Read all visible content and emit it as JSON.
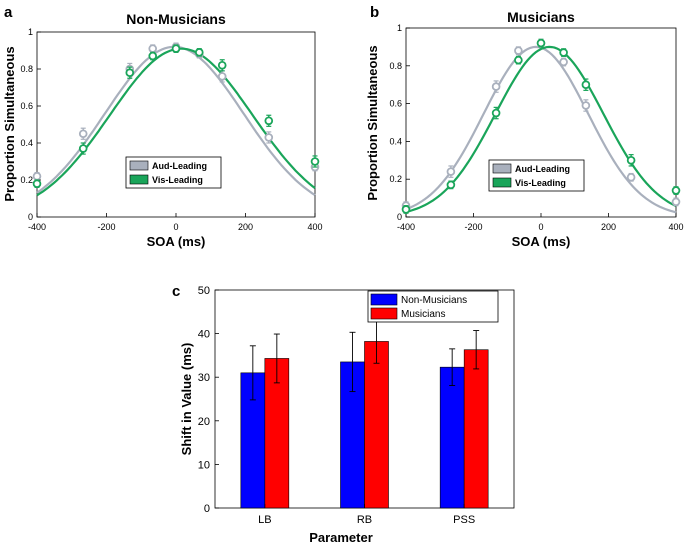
{
  "colors": {
    "aud": "#a9b0bd",
    "vis": "#1aa55a",
    "non_musicians_bar": "#0000ff",
    "musicians_bar": "#ff0000"
  },
  "chart_data": [
    {
      "panel": "a",
      "type": "line",
      "title": "Non-Musicians",
      "xlabel": "SOA (ms)",
      "ylabel": "Proportion Simultaneous",
      "xlim": [
        -400,
        400
      ],
      "ylim": [
        0,
        1
      ],
      "xticks": [
        "-400",
        "-200",
        "0",
        "200",
        "400"
      ],
      "yticks": [
        "0",
        "0.2",
        "0.4",
        "0.6",
        "0.8",
        "1"
      ],
      "legend_position": "lower-center",
      "series": [
        {
          "name": "Aud-Leading",
          "color": "#a9b0bd",
          "x": [
            -400,
            -267,
            -133,
            -67,
            0,
            67,
            133,
            267,
            400
          ],
          "y": [
            0.22,
            0.45,
            0.8,
            0.91,
            0.92,
            0.88,
            0.76,
            0.43,
            0.27
          ],
          "err": [
            0.02,
            0.03,
            0.03,
            0.02,
            0.02,
            0.02,
            0.03,
            0.03,
            0.02
          ],
          "fit": {
            "mu": -5,
            "sigma": 200,
            "amp": 0.92
          }
        },
        {
          "name": "Vis-Leading",
          "color": "#1aa55a",
          "x": [
            -400,
            -267,
            -133,
            -67,
            0,
            67,
            133,
            267,
            400
          ],
          "y": [
            0.18,
            0.37,
            0.78,
            0.87,
            0.91,
            0.89,
            0.82,
            0.52,
            0.3
          ],
          "err": [
            0.02,
            0.03,
            0.03,
            0.02,
            0.02,
            0.02,
            0.03,
            0.03,
            0.03
          ],
          "fit": {
            "mu": 15,
            "sigma": 205,
            "amp": 0.91
          }
        }
      ]
    },
    {
      "panel": "b",
      "type": "line",
      "title": "Musicians",
      "xlabel": "SOA (ms)",
      "ylabel": "Proportion Simultaneous",
      "xlim": [
        -400,
        400
      ],
      "ylim": [
        0,
        1
      ],
      "xticks": [
        "-400",
        "-200",
        "0",
        "200",
        "400"
      ],
      "yticks": [
        "0",
        "0.2",
        "0.4",
        "0.6",
        "0.8",
        "1"
      ],
      "legend_position": "lower-center",
      "series": [
        {
          "name": "Aud-Leading",
          "color": "#a9b0bd",
          "x": [
            -400,
            -267,
            -133,
            -67,
            0,
            67,
            133,
            267,
            400
          ],
          "y": [
            0.06,
            0.24,
            0.69,
            0.88,
            0.92,
            0.82,
            0.59,
            0.21,
            0.08
          ],
          "err": [
            0.02,
            0.03,
            0.03,
            0.02,
            0.02,
            0.02,
            0.03,
            0.02,
            0.02
          ],
          "fit": {
            "mu": -15,
            "sigma": 155,
            "amp": 0.9
          }
        },
        {
          "name": "Vis-Leading",
          "color": "#1aa55a",
          "x": [
            -400,
            -267,
            -133,
            -67,
            0,
            67,
            133,
            267,
            400
          ],
          "y": [
            0.04,
            0.17,
            0.55,
            0.83,
            0.92,
            0.87,
            0.7,
            0.3,
            0.14
          ],
          "err": [
            0.02,
            0.02,
            0.03,
            0.02,
            0.02,
            0.02,
            0.03,
            0.03,
            0.02
          ],
          "fit": {
            "mu": 25,
            "sigma": 160,
            "amp": 0.9
          }
        }
      ]
    },
    {
      "panel": "c",
      "type": "bar",
      "title": "",
      "xlabel": "Parameter",
      "ylabel": "Shift in Value (ms)",
      "categories": [
        "LB",
        "RB",
        "PSS"
      ],
      "ylim": [
        0,
        50
      ],
      "yticks": [
        "0",
        "10",
        "20",
        "30",
        "40",
        "50"
      ],
      "legend_position": "top-right",
      "series": [
        {
          "name": "Non-Musicians",
          "color": "#0000ff",
          "values": [
            31.0,
            33.5,
            32.3
          ],
          "err": [
            6.2,
            6.8,
            4.2
          ]
        },
        {
          "name": "Musicians",
          "color": "#ff0000",
          "values": [
            34.3,
            38.2,
            36.3
          ],
          "err": [
            5.6,
            5.0,
            4.4
          ]
        }
      ]
    }
  ]
}
